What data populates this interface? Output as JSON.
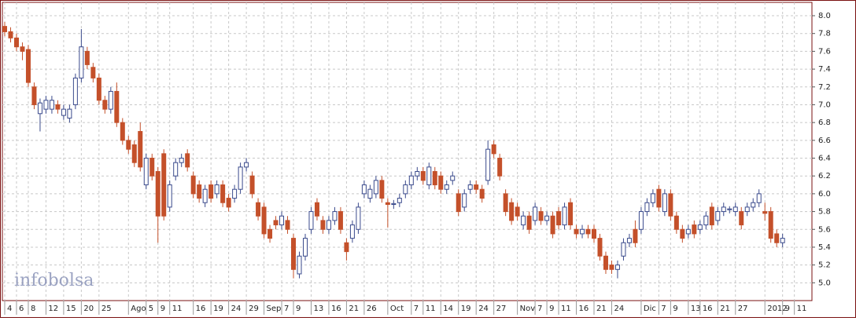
{
  "chart_data": {
    "type": "candlestick",
    "watermark": "infobolsa",
    "up_color": "#3a4a8c",
    "down_color": "#c4502a",
    "grid": true,
    "ylim": [
      4.8,
      8.15
    ],
    "yticks": [
      {
        "value": 5.0,
        "label": "5.0"
      },
      5.2,
      5.4,
      5.6,
      5.8,
      {
        "value": 6.0,
        "label": "6.0"
      },
      6.2,
      6.4,
      6.6,
      6.8,
      {
        "value": 7.0,
        "label": "7.0"
      },
      7.2,
      7.4,
      7.6,
      7.8,
      {
        "value": 8.0,
        "label": "8.0"
      }
    ],
    "categories": [
      "4",
      null,
      "6",
      null,
      "8",
      null,
      null,
      "12",
      null,
      null,
      "15",
      null,
      null,
      "20",
      null,
      null,
      "25",
      null,
      null,
      null,
      null,
      "Ago",
      null,
      null,
      "5",
      null,
      "9",
      null,
      "11",
      null,
      null,
      null,
      "16",
      null,
      null,
      "19",
      null,
      null,
      "24",
      null,
      null,
      "29",
      null,
      null,
      "Sep",
      null,
      null,
      "7",
      null,
      "9",
      null,
      null,
      "13",
      null,
      null,
      "16",
      null,
      null,
      "21",
      null,
      null,
      "26",
      null,
      null,
      null,
      "Oct",
      null,
      null,
      null,
      "7",
      null,
      "11",
      null,
      null,
      "14",
      null,
      null,
      "19",
      null,
      null,
      "24",
      null,
      null,
      "27",
      null,
      null,
      null,
      "Nov",
      null,
      null,
      "7",
      null,
      "9",
      null,
      "11",
      null,
      null,
      "16",
      null,
      null,
      "21",
      null,
      null,
      "24",
      null,
      null,
      null,
      null,
      "Dic",
      null,
      null,
      "7",
      null,
      "9",
      null,
      null,
      "13",
      null,
      "16",
      null,
      null,
      "21",
      null,
      null,
      "27",
      null,
      null,
      null,
      null,
      "2012",
      null,
      null,
      "9",
      null,
      "11"
    ],
    "open": [
      7.88,
      7.82,
      7.75,
      7.65,
      7.62,
      7.2,
      6.9,
      6.95,
      6.95,
      7.0,
      6.88,
      6.85,
      7.0,
      7.3,
      7.6,
      7.42,
      7.3,
      7.05,
      6.95,
      7.15,
      6.8,
      6.6,
      6.55,
      6.7,
      6.1,
      6.4,
      6.25,
      6.45,
      5.85,
      6.2,
      6.35,
      6.45,
      6.2,
      6.1,
      5.9,
      6.1,
      6.0,
      6.1,
      5.95,
      5.95,
      6.05,
      6.3,
      6.2,
      5.9,
      5.85,
      5.6,
      5.7,
      5.65,
      5.7,
      5.5,
      5.1,
      5.3,
      5.6,
      5.9,
      5.7,
      5.6,
      5.7,
      5.8,
      5.45,
      5.5,
      5.6,
      6.0,
      5.95,
      6.0,
      6.15,
      5.9,
      5.88,
      5.9,
      6.0,
      6.1,
      6.2,
      6.25,
      6.1,
      6.25,
      6.2,
      6.05,
      6.15,
      6.0,
      5.85,
      6.05,
      6.1,
      6.05,
      6.15,
      6.55,
      6.4,
      6.0,
      5.9,
      5.85,
      5.65,
      5.75,
      5.7,
      5.8,
      5.7,
      5.75,
      5.8,
      5.65,
      5.9,
      5.6,
      5.55,
      5.6,
      5.6,
      5.5,
      5.3,
      5.2,
      5.15,
      5.3,
      5.45,
      5.6,
      5.6,
      5.8,
      5.9,
      6.05,
      5.8,
      6.0,
      5.75,
      5.6,
      5.55,
      5.65,
      5.6,
      5.65,
      5.85,
      5.7,
      5.8,
      5.82,
      5.8,
      5.8,
      5.8,
      5.85,
      5.9,
      5.8,
      5.8,
      5.55,
      5.45,
      null,
      null
    ],
    "close": [
      7.82,
      7.75,
      7.65,
      7.6,
      7.25,
      7.0,
      7.02,
      7.05,
      7.05,
      6.95,
      6.95,
      6.95,
      7.3,
      7.65,
      7.45,
      7.3,
      7.05,
      6.95,
      7.15,
      6.8,
      6.6,
      6.5,
      6.35,
      6.3,
      6.4,
      6.2,
      5.75,
      5.75,
      6.1,
      6.35,
      6.4,
      6.3,
      6.0,
      5.95,
      6.05,
      5.95,
      6.1,
      5.9,
      5.85,
      6.05,
      6.3,
      6.35,
      6.0,
      5.75,
      5.55,
      5.5,
      5.65,
      5.75,
      5.6,
      5.15,
      5.3,
      5.5,
      5.8,
      5.75,
      5.6,
      5.7,
      5.8,
      5.6,
      5.35,
      5.65,
      5.85,
      6.1,
      6.05,
      6.15,
      5.95,
      5.88,
      5.89,
      5.95,
      6.1,
      6.2,
      6.25,
      6.15,
      6.3,
      6.1,
      6.05,
      6.1,
      6.2,
      5.8,
      6.0,
      6.1,
      6.05,
      5.95,
      6.5,
      6.45,
      6.2,
      5.8,
      5.7,
      5.75,
      5.75,
      5.6,
      5.85,
      5.7,
      5.75,
      5.55,
      5.65,
      5.85,
      5.65,
      5.55,
      5.6,
      5.55,
      5.5,
      5.3,
      5.15,
      5.15,
      5.2,
      5.45,
      5.5,
      5.45,
      5.8,
      5.9,
      6.0,
      5.85,
      6.0,
      5.75,
      5.6,
      5.5,
      5.6,
      5.55,
      5.65,
      5.75,
      5.65,
      5.8,
      5.85,
      5.83,
      5.85,
      5.65,
      5.85,
      5.9,
      6.0,
      5.78,
      5.5,
      5.45,
      5.5,
      null,
      null
    ],
    "high": [
      7.93,
      7.87,
      7.8,
      7.7,
      7.67,
      7.25,
      7.07,
      7.1,
      7.1,
      7.05,
      7.0,
      7.0,
      7.35,
      7.85,
      7.65,
      7.47,
      7.35,
      7.1,
      7.2,
      7.25,
      6.85,
      6.65,
      6.6,
      6.8,
      6.45,
      6.45,
      6.3,
      6.5,
      6.15,
      6.4,
      6.45,
      6.5,
      6.25,
      6.15,
      6.1,
      6.15,
      6.15,
      6.15,
      6.0,
      6.1,
      6.35,
      6.4,
      6.25,
      5.95,
      5.9,
      5.65,
      5.75,
      5.8,
      5.75,
      5.55,
      5.35,
      5.55,
      5.85,
      5.95,
      5.75,
      5.75,
      5.85,
      5.85,
      5.5,
      5.7,
      5.9,
      6.15,
      6.1,
      6.2,
      6.2,
      5.95,
      5.93,
      6.0,
      6.15,
      6.25,
      6.3,
      6.3,
      6.35,
      6.3,
      6.25,
      6.15,
      6.25,
      6.05,
      6.05,
      6.15,
      6.15,
      6.1,
      6.6,
      6.6,
      6.45,
      6.05,
      5.95,
      5.9,
      5.8,
      5.8,
      5.9,
      5.85,
      5.8,
      5.8,
      5.85,
      5.9,
      5.95,
      5.65,
      5.65,
      5.65,
      5.65,
      5.55,
      5.35,
      5.25,
      5.25,
      5.5,
      5.55,
      5.7,
      5.85,
      5.95,
      6.05,
      6.1,
      6.05,
      6.05,
      5.8,
      5.65,
      5.65,
      5.7,
      5.7,
      5.8,
      5.9,
      5.85,
      5.9,
      5.86,
      5.9,
      5.85,
      5.9,
      5.95,
      6.05,
      5.9,
      5.85,
      5.6,
      5.55,
      null,
      null
    ],
    "low": [
      7.77,
      7.7,
      7.6,
      7.5,
      7.2,
      6.95,
      6.7,
      6.9,
      6.9,
      6.9,
      6.83,
      6.8,
      6.95,
      7.25,
      7.4,
      7.25,
      7.0,
      6.9,
      6.9,
      6.75,
      6.55,
      6.45,
      6.3,
      6.25,
      6.05,
      6.15,
      5.45,
      5.7,
      5.8,
      6.15,
      6.3,
      6.25,
      5.95,
      5.9,
      5.85,
      5.9,
      5.95,
      5.85,
      5.8,
      5.9,
      6.0,
      6.25,
      5.95,
      5.7,
      5.5,
      5.45,
      5.6,
      5.6,
      5.55,
      5.05,
      5.05,
      5.25,
      5.55,
      5.7,
      5.55,
      5.55,
      5.65,
      5.55,
      5.25,
      5.45,
      5.55,
      5.95,
      5.9,
      5.95,
      5.9,
      5.62,
      5.83,
      5.85,
      5.95,
      6.05,
      6.15,
      6.1,
      6.05,
      6.05,
      6.0,
      6.0,
      6.1,
      5.75,
      5.8,
      6.0,
      6.0,
      5.9,
      6.1,
      6.4,
      6.15,
      5.75,
      5.65,
      5.7,
      5.6,
      5.55,
      5.65,
      5.65,
      5.65,
      5.5,
      5.6,
      5.6,
      5.6,
      5.5,
      5.5,
      5.5,
      5.45,
      5.25,
      5.1,
      5.1,
      5.05,
      5.25,
      5.4,
      5.4,
      5.55,
      5.75,
      5.85,
      5.8,
      5.75,
      5.7,
      5.55,
      5.45,
      5.5,
      5.5,
      5.55,
      5.6,
      5.6,
      5.65,
      5.75,
      5.78,
      5.75,
      5.6,
      5.75,
      5.8,
      5.85,
      5.7,
      5.45,
      5.4,
      5.4,
      null,
      null
    ]
  }
}
